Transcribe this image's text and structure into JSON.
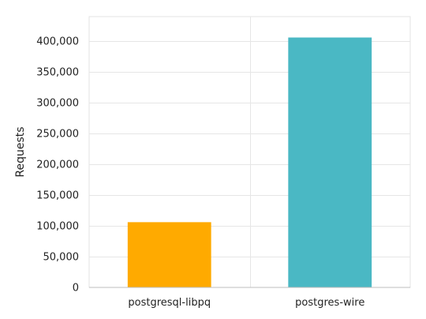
{
  "chart_data": {
    "type": "bar",
    "categories": [
      "postgresql-libpq",
      "postgres-wire"
    ],
    "values": [
      106000,
      406000
    ],
    "colors": [
      "#FFAA00",
      "#4AB8C4"
    ],
    "title": "",
    "xlabel": "",
    "ylabel": "Requests",
    "ylim": [
      0,
      440000
    ],
    "yticks": [
      0,
      50000,
      100000,
      150000,
      200000,
      250000,
      300000,
      350000,
      400000
    ],
    "ytick_labels": [
      "0",
      "50,000",
      "100,000",
      "150,000",
      "200,000",
      "250,000",
      "300,000",
      "350,000",
      "400,000"
    ],
    "grid": true,
    "legend": "none"
  }
}
